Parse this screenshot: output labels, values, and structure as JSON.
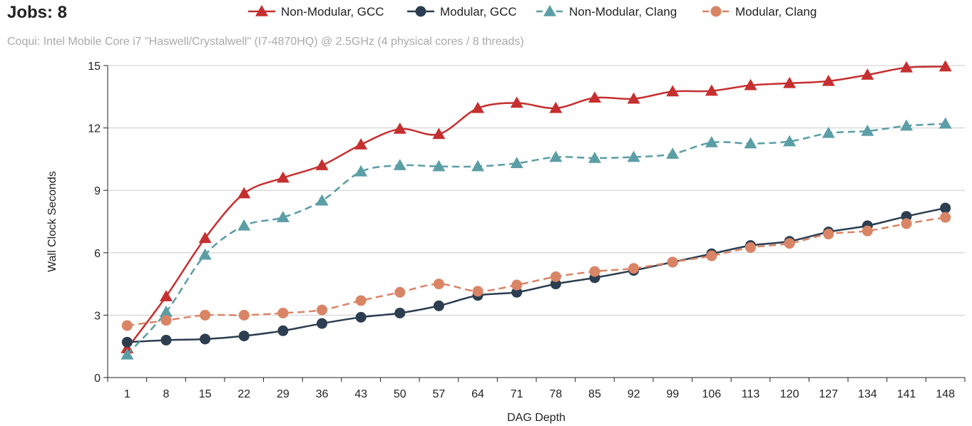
{
  "chart_data": {
    "type": "line",
    "title": "Jobs: 8",
    "subtitle": "Coqui: Intel Mobile Core i7 \"Haswell/Crystalwell\" (I7-4870HQ) @ 2.5GHz (4 physical cores / 8 threads)",
    "xlabel": "DAG Depth",
    "ylabel": "Wall Clock Seconds",
    "ylim": [
      0,
      15
    ],
    "yticks": [
      0,
      3,
      6,
      9,
      12,
      15
    ],
    "categories": [
      "1",
      "8",
      "15",
      "22",
      "29",
      "36",
      "43",
      "50",
      "57",
      "64",
      "71",
      "78",
      "85",
      "92",
      "99",
      "106",
      "113",
      "120",
      "127",
      "134",
      "141",
      "148"
    ],
    "grid": "horizontal",
    "legend": "top",
    "series": [
      {
        "name": "Non-Modular, GCC",
        "color": "#c62f2f",
        "marker": "triangle",
        "dash": "solid",
        "values": [
          1.4,
          3.9,
          6.7,
          8.85,
          9.6,
          10.2,
          11.2,
          11.95,
          11.7,
          12.95,
          13.2,
          12.95,
          13.45,
          13.4,
          13.75,
          13.78,
          14.05,
          14.15,
          14.25,
          14.55,
          14.9,
          14.95
        ]
      },
      {
        "name": "Modular, GCC",
        "color": "#2c3e50",
        "marker": "circle",
        "dash": "solid",
        "values": [
          1.7,
          1.8,
          1.85,
          2.0,
          2.25,
          2.6,
          2.9,
          3.1,
          3.45,
          3.95,
          4.1,
          4.5,
          4.8,
          5.15,
          5.55,
          5.95,
          6.35,
          6.55,
          7.0,
          7.3,
          7.75,
          8.15
        ]
      },
      {
        "name": "Non-Modular, Clang",
        "color": "#5b9ea6",
        "marker": "triangle",
        "dash": "dashed",
        "values": [
          1.1,
          3.15,
          5.9,
          7.3,
          7.7,
          8.5,
          9.9,
          10.2,
          10.15,
          10.15,
          10.3,
          10.6,
          10.55,
          10.6,
          10.75,
          11.3,
          11.25,
          11.35,
          11.75,
          11.85,
          12.1,
          12.2
        ]
      },
      {
        "name": "Modular, Clang",
        "color": "#da8466",
        "marker": "circle",
        "dash": "dashed",
        "values": [
          2.5,
          2.75,
          3.0,
          3.0,
          3.1,
          3.25,
          3.7,
          4.1,
          4.5,
          4.15,
          4.45,
          4.85,
          5.1,
          5.25,
          5.55,
          5.85,
          6.25,
          6.45,
          6.9,
          7.05,
          7.4,
          7.7
        ]
      }
    ]
  }
}
